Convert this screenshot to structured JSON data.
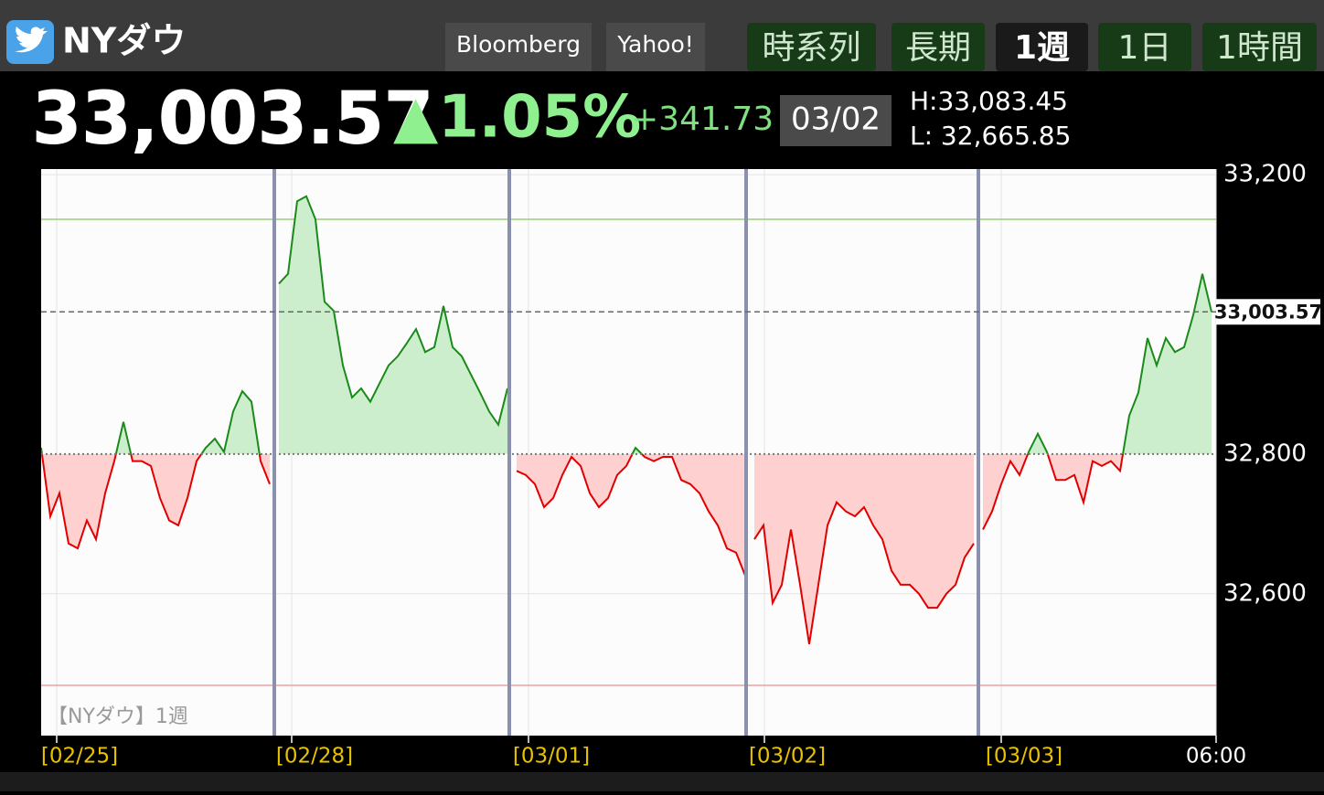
{
  "header": {
    "title": "NYダウ",
    "buttons": [
      "Bloomberg",
      "Yahoo!"
    ],
    "tabs": [
      "時系列",
      "長期",
      "1週",
      "1日",
      "1時間"
    ],
    "selected_tab": 2
  },
  "quote": {
    "price": "33,003.57",
    "change_pct": "▲1.05%",
    "change": "+341.73",
    "date": "03/02",
    "high": "H:33,083.45",
    "low": "L: 32,665.85"
  },
  "chart_data": {
    "type": "line",
    "watermark": "【NYダウ】1週",
    "x": [
      0,
      1,
      2,
      3,
      4,
      5,
      6,
      7,
      8,
      9,
      10,
      11,
      12,
      13,
      14,
      15,
      16,
      17,
      18,
      19,
      20,
      21,
      22,
      23,
      24,
      25,
      25.5,
      26,
      27,
      28,
      29,
      30,
      31,
      32,
      33,
      34,
      35,
      36,
      37,
      38,
      39,
      40,
      41,
      42,
      43,
      44,
      45,
      46,
      47,
      48,
      49,
      50,
      51,
      51.2,
      52,
      53,
      54,
      55,
      56,
      57,
      58,
      59,
      60,
      61,
      62,
      63,
      64,
      65,
      66,
      67,
      68,
      69,
      70,
      71,
      72,
      73,
      74,
      75,
      76,
      77,
      77.1,
      78,
      79,
      80,
      81,
      82,
      83,
      84,
      85,
      86,
      87,
      88,
      89,
      90,
      91,
      92,
      93,
      94,
      95,
      96,
      97,
      98,
      99,
      100,
      101,
      102,
      102.5,
      103,
      104,
      105,
      106,
      107,
      108,
      109,
      110,
      111,
      112,
      113,
      114,
      115,
      116,
      117,
      118,
      119,
      120,
      121,
      122,
      123,
      124,
      125,
      126,
      127,
      128
    ],
    "series": [
      {
        "name": "NYダウ",
        "color_up": "#1a8a1a",
        "color_down": "#e00000",
        "fill_up": "#cdeecd",
        "fill_down": "#ffd0d0",
        "values": [
          32809,
          32711,
          32744,
          32672,
          32665,
          32705,
          32678,
          32744,
          32790,
          32846,
          32790,
          32790,
          32783,
          32737,
          32705,
          32698,
          32737,
          32790,
          32809,
          32822,
          32803,
          32861,
          32890,
          32875,
          32790,
          32757,
          null,
          33044,
          33058,
          33162,
          33169,
          33136,
          33018,
          33005,
          32927,
          32881,
          32894,
          32875,
          32901,
          32927,
          32940,
          32959,
          32979,
          32946,
          32953,
          33012,
          32953,
          32940,
          32914,
          32888,
          32861,
          32842,
          32894,
          null,
          32776,
          32770,
          32757,
          32724,
          32737,
          32770,
          32796,
          32783,
          32744,
          32724,
          32737,
          32770,
          32783,
          32809,
          32796,
          32790,
          32796,
          32796,
          32763,
          32757,
          32744,
          32718,
          32698,
          32665,
          32659,
          32626,
          null,
          32678,
          32698,
          32587,
          32613,
          32692,
          32613,
          32528,
          32613,
          32698,
          32731,
          32718,
          32711,
          32724,
          32698,
          32678,
          32633,
          32613,
          32613,
          32600,
          32580,
          32580,
          32600,
          32613,
          32652,
          32672,
          null,
          32692,
          32718,
          32757,
          32790,
          32770,
          32803,
          32829,
          32803,
          32763,
          32763,
          32770,
          32731,
          32790,
          32783,
          32790,
          32776,
          32855,
          32888,
          32966,
          32927,
          32966,
          32946,
          32953,
          32999,
          33058,
          33003.57
        ]
      }
    ],
    "baseline": 32800,
    "last_price": {
      "value": 33003.57,
      "label": "33,003.57"
    },
    "reference_lines": [
      {
        "value": 33136,
        "color": "#9ccf7a"
      },
      {
        "value": 32469,
        "color": "#eea0a0"
      }
    ],
    "session_breaks": [
      25.5,
      51.2,
      77.1,
      102.5
    ],
    "session_break_color": "#8a90ad",
    "xlim": [
      0,
      128.5
    ],
    "xticks": [
      {
        "value": 1.7,
        "label": "[02/25]"
      },
      {
        "value": 27.4,
        "label": "[02/28]"
      },
      {
        "value": 53.3,
        "label": "[03/01]"
      },
      {
        "value": 79.1,
        "label": "[03/02]"
      },
      {
        "value": 105,
        "label": "[03/03]"
      },
      {
        "value": 128.5,
        "label": "06:00"
      }
    ],
    "ylim": [
      32397,
      33208
    ],
    "yticks": [
      {
        "value": 32600,
        "label": "32,600"
      },
      {
        "value": 32800,
        "label": "32,800"
      },
      {
        "value": 33200,
        "label": "33,200"
      }
    ],
    "grid": true
  }
}
